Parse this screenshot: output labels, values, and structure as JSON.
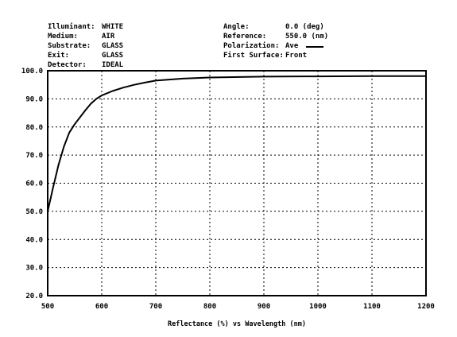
{
  "header_left": [
    {
      "key": "Illuminant:",
      "value": "WHITE"
    },
    {
      "key": "Medium:",
      "value": "AIR"
    },
    {
      "key": "Substrate:",
      "value": "GLASS"
    },
    {
      "key": "Exit:",
      "value": "GLASS"
    },
    {
      "key": "Detector:",
      "value": "IDEAL"
    }
  ],
  "header_right": [
    {
      "key": "Angle:",
      "value": "0.0 (deg)"
    },
    {
      "key": "Reference:",
      "value": "550.0 (nm)"
    },
    {
      "key": "Polarization:",
      "value": "Ave"
    },
    {
      "key": "First Surface:",
      "value": "Front"
    }
  ],
  "chart_data": {
    "type": "line",
    "title": "",
    "xlabel": "Reflectance (%) vs Wavelength (nm)",
    "ylabel": "",
    "xlim": [
      500,
      1200
    ],
    "ylim": [
      20,
      100
    ],
    "x_ticks": [
      500,
      600,
      700,
      800,
      900,
      1000,
      1100,
      1200
    ],
    "x_tick_labels": [
      "500",
      "600",
      "700",
      "800",
      "900",
      "1000",
      "1100",
      "1200"
    ],
    "y_ticks": [
      20,
      30,
      40,
      50,
      60,
      70,
      80,
      90,
      100
    ],
    "y_tick_labels": [
      "20.0",
      "30.0",
      "40.0",
      "50.0",
      "60.0",
      "70.0",
      "80.0",
      "90.0",
      "100.0"
    ],
    "grid": true,
    "series": [
      {
        "x": [
          500,
          510,
          520,
          530,
          540,
          550,
          560,
          570,
          580,
          590,
          600,
          620,
          640,
          660,
          680,
          700,
          750,
          800,
          900,
          1000,
          1100,
          1200
        ],
        "y": [
          50.0,
          58.5,
          66.5,
          73.0,
          78.0,
          81.0,
          83.5,
          86.0,
          88.3,
          90.0,
          91.2,
          92.8,
          94.0,
          95.0,
          95.8,
          96.5,
          97.2,
          97.6,
          97.9,
          98.0,
          98.1,
          98.1
        ]
      }
    ]
  }
}
